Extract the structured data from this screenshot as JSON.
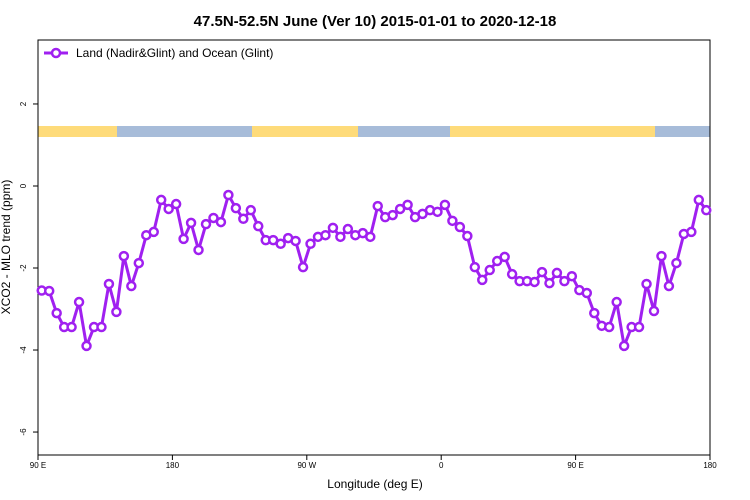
{
  "chart_data": {
    "type": "line",
    "title": "47.5N-52.5N June (Ver 10)   2015-01-01 to 2020-12-18",
    "xlabel": "Longitude (deg E)",
    "ylabel": "XCO2 - MLO trend (ppm)",
    "x": [
      92.5,
      97.5,
      102.5,
      107.5,
      112.5,
      117.5,
      122.5,
      127.5,
      132.5,
      137.5,
      142.5,
      147.5,
      152.5,
      157.5,
      162.5,
      167.5,
      172.5,
      177.5,
      182.5,
      187.5,
      192.5,
      197.5,
      202.5,
      207.5,
      212.5,
      217.5,
      222.5,
      227.5,
      232.5,
      237.5,
      242.5,
      247.5,
      252.5,
      257.5,
      262.5,
      267.5,
      272.5,
      277.5,
      282.5,
      287.5,
      292.5,
      297.5,
      302.5,
      307.5,
      312.5,
      317.5,
      322.5,
      327.5,
      332.5,
      337.5,
      342.5,
      347.5,
      352.5,
      357.5,
      362.5,
      367.5,
      372.5,
      377.5,
      382.5,
      387.5,
      392.5,
      397.5,
      402.5,
      407.5,
      412.5,
      417.5,
      422.5,
      427.5,
      432.5,
      437.5,
      442.5,
      447.5,
      452.5,
      457.5,
      462.5,
      467.5,
      472.5,
      477.5,
      482.5,
      487.5,
      492.5,
      497.5,
      502.5,
      507.5,
      512.5,
      517.5,
      522.5,
      527.5,
      532.5,
      537.5
    ],
    "series": [
      {
        "name": "Land (Nadir&Glint) and Ocean (Glint)",
        "color": "#a020f0",
        "values": [
          -2.55,
          -2.56,
          -3.1,
          -3.44,
          -3.44,
          -2.83,
          -3.9,
          -3.44,
          -3.44,
          -2.39,
          -3.07,
          -1.71,
          -2.44,
          -1.88,
          -1.2,
          -1.12,
          -0.34,
          -0.56,
          -0.44,
          -1.29,
          -0.9,
          -1.56,
          -0.93,
          -0.78,
          -0.88,
          -0.22,
          -0.54,
          -0.8,
          -0.59,
          -0.98,
          -1.32,
          -1.32,
          -1.41,
          -1.27,
          -1.34,
          -1.98,
          -1.41,
          -1.24,
          -1.2,
          -1.02,
          -1.24,
          -1.05,
          -1.2,
          -1.15,
          -1.24,
          -0.49,
          -0.76,
          -0.71,
          -0.56,
          -0.46,
          -0.76,
          -0.68,
          -0.59,
          -0.63,
          -0.46,
          -0.85,
          -1.0,
          -1.22,
          -1.98,
          -2.29,
          -2.05,
          -1.83,
          -1.73,
          -2.15,
          -2.32,
          -2.32,
          -2.34,
          -2.1,
          -2.37,
          -2.12,
          -2.32,
          -2.2,
          -2.54,
          -2.61,
          -3.1,
          -3.41,
          -3.44,
          -2.83,
          -3.9,
          -3.44,
          -3.44,
          -2.39,
          -3.05,
          -1.71,
          -2.44,
          -1.88,
          -1.17,
          -1.12,
          -0.34,
          -0.59
        ]
      }
    ],
    "xlim": [
      90,
      540
    ],
    "xticks": [
      {
        "value": 90,
        "label": "90 E"
      },
      180,
      {
        "value": 270,
        "label": "90 W"
      },
      {
        "value": 360,
        "label": "0"
      },
      {
        "value": 450,
        "label": "90 E"
      },
      {
        "value": 540,
        "label": "180"
      }
    ],
    "ylim": [
      -6.56,
      3.56
    ],
    "yticks": [
      2,
      0,
      -2,
      -4,
      -6
    ],
    "legend": "top-left"
  }
}
